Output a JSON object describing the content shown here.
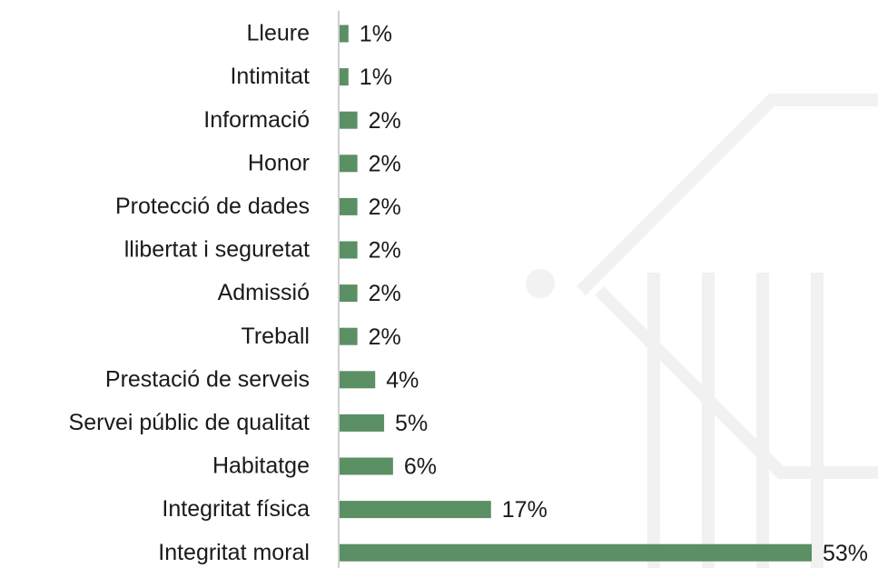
{
  "chart_data": {
    "type": "bar",
    "orientation": "horizontal",
    "categories": [
      "Lleure",
      "Intimitat",
      "Informació",
      "Honor",
      "Protecció de dades",
      "llibertat i seguretat",
      "Admissió",
      "Treball",
      "Prestació de serveis",
      "Servei públic de qualitat",
      "Habitatge",
      "Integritat física",
      "Integritat moral"
    ],
    "values": [
      1,
      1,
      2,
      2,
      2,
      2,
      2,
      2,
      4,
      5,
      6,
      17,
      53
    ],
    "value_labels": [
      "1%",
      "1%",
      "2%",
      "2%",
      "2%",
      "2%",
      "2%",
      "2%",
      "4%",
      "5%",
      "6%",
      "17%",
      "53%"
    ],
    "color": "#5b8f64"
  }
}
